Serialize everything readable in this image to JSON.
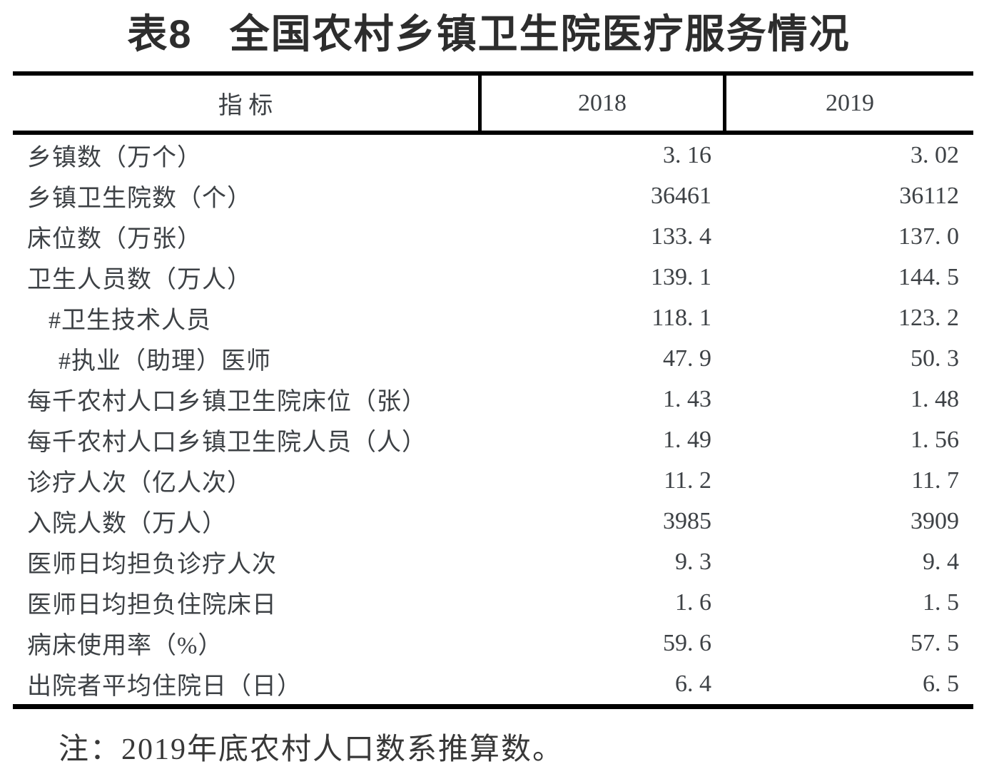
{
  "title": {
    "table_number": "表8",
    "text": "全国农村乡镇卫生院医疗服务情况"
  },
  "table": {
    "header": {
      "indicator": "指  标",
      "year1": "2018",
      "year2": "2019"
    },
    "rows": [
      {
        "label": "乡镇数（万个）",
        "indent": 0,
        "v2018": "3. 16",
        "v2019": "3. 02"
      },
      {
        "label": "乡镇卫生院数（个）",
        "indent": 0,
        "v2018": "36461",
        "v2019": "36112"
      },
      {
        "label": "床位数（万张）",
        "indent": 0,
        "v2018": "133. 4",
        "v2019": "137. 0"
      },
      {
        "label": "卫生人员数（万人）",
        "indent": 0,
        "v2018": "139. 1",
        "v2019": "144. 5"
      },
      {
        "label": "#卫生技术人员",
        "indent": 1,
        "v2018": "118. 1",
        "v2019": "123. 2"
      },
      {
        "label": "#执业（助理）医师",
        "indent": 2,
        "v2018": "47. 9",
        "v2019": "50. 3"
      },
      {
        "label": "每千农村人口乡镇卫生院床位（张）",
        "indent": 0,
        "v2018": "1. 43",
        "v2019": "1. 48"
      },
      {
        "label": "每千农村人口乡镇卫生院人员（人）",
        "indent": 0,
        "v2018": "1. 49",
        "v2019": "1. 56"
      },
      {
        "label": "诊疗人次（亿人次）",
        "indent": 0,
        "v2018": "11. 2",
        "v2019": "11. 7"
      },
      {
        "label": "入院人数（万人）",
        "indent": 0,
        "v2018": "3985",
        "v2019": "3909"
      },
      {
        "label": "医师日均担负诊疗人次",
        "indent": 0,
        "v2018": "9. 3",
        "v2019": "9. 4"
      },
      {
        "label": "医师日均担负住院床日",
        "indent": 0,
        "v2018": "1. 6",
        "v2019": "1. 5"
      },
      {
        "label": "病床使用率（%）",
        "indent": 0,
        "v2018": "59. 6",
        "v2019": "57. 5"
      },
      {
        "label": "出院者平均住院日（日）",
        "indent": 0,
        "v2018": "6. 4",
        "v2019": "6. 5"
      }
    ]
  },
  "note": "注：2019年底农村人口数系推算数。",
  "colors": {
    "border": "#000000",
    "body_text": "#3d4145",
    "title_text": "#2d2d2d",
    "background": "#ffffff"
  }
}
